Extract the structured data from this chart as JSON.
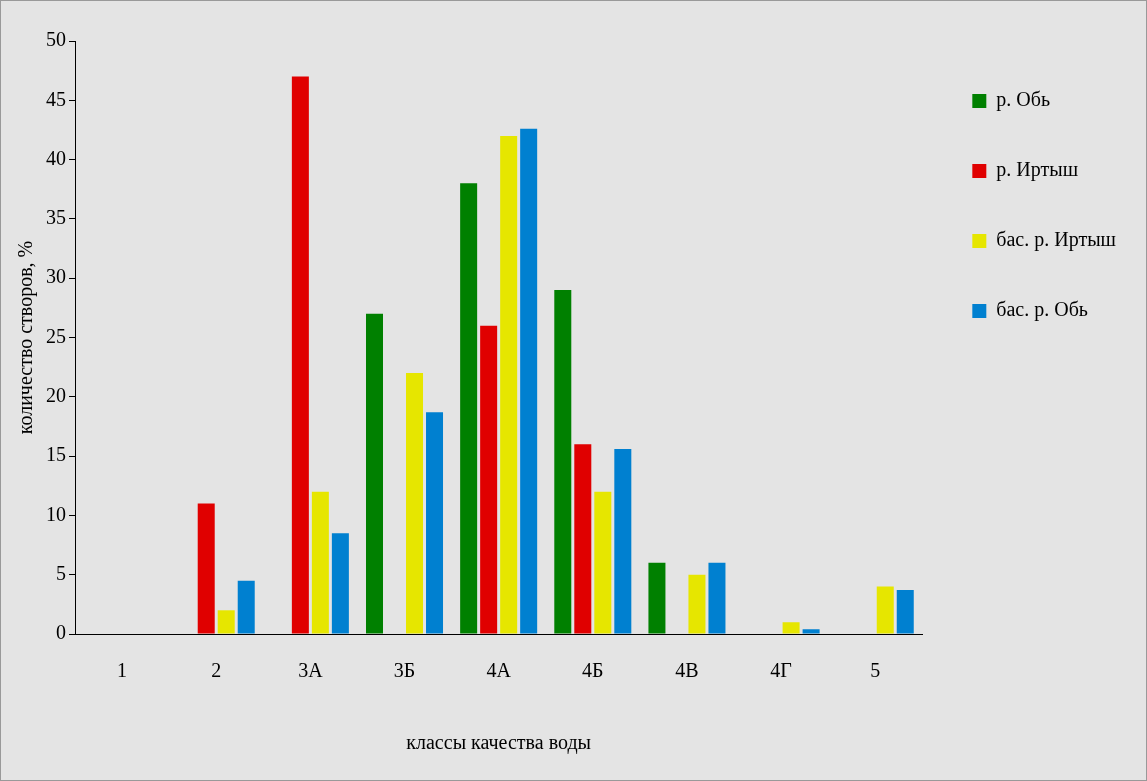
{
  "chart_data": {
    "type": "bar",
    "xlabel": "классы качества воды",
    "ylabel": "количество створов, %",
    "categories": [
      "1",
      "2",
      "3А",
      "3Б",
      "4А",
      "4Б",
      "4В",
      "4Г",
      "5"
    ],
    "series": [
      {
        "name": "р. Обь",
        "color": "#008000",
        "values": [
          0,
          0,
          0,
          27,
          38,
          29,
          6,
          0,
          0
        ]
      },
      {
        "name": "р. Иртыш",
        "color": "#e00000",
        "values": [
          0,
          11,
          47,
          0,
          26,
          16,
          0,
          0,
          0
        ]
      },
      {
        "name": "бас. р. Иртыш",
        "color": "#e6e600",
        "values": [
          0,
          2,
          12,
          22,
          42,
          12,
          5,
          1,
          4
        ]
      },
      {
        "name": "бас. р. Обь",
        "color": "#0080d0",
        "values": [
          0,
          4.5,
          8.5,
          18.7,
          42.6,
          15.6,
          6,
          0.4,
          3.7
        ]
      }
    ],
    "ylim": [
      0,
      50
    ],
    "yticks": [
      0,
      5,
      10,
      15,
      20,
      25,
      30,
      35,
      40,
      45,
      50
    ],
    "grid": false,
    "legend": "right"
  }
}
